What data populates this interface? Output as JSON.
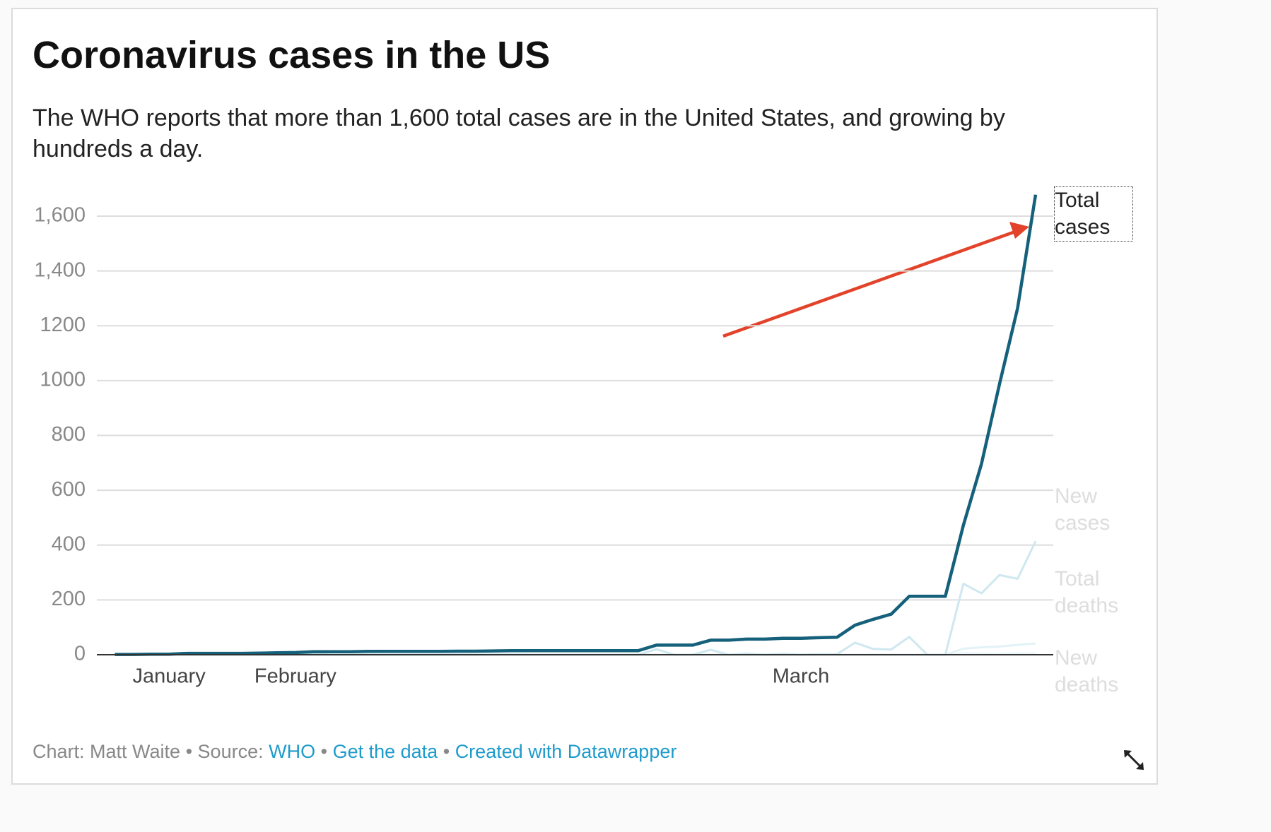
{
  "chart_data": {
    "type": "line",
    "title": "Coronavirus cases in the US",
    "subtitle": "The WHO reports that more than 1,600 total cases are in the United States, and growing by hundreds a day.",
    "categories": [
      null,
      null,
      null,
      "January",
      null,
      null,
      null,
      null,
      null,
      null,
      "February",
      null,
      null,
      null,
      null,
      null,
      null,
      null,
      null,
      null,
      null,
      null,
      null,
      null,
      null,
      null,
      null,
      null,
      null,
      null,
      null,
      null,
      null,
      null,
      null,
      null,
      null,
      null,
      "March",
      null,
      null,
      null,
      null,
      null,
      null,
      null,
      null,
      null,
      null,
      null,
      null,
      null
    ],
    "series": [
      {
        "name": "Total cases",
        "color": "#15607a",
        "values": [
          1,
          1,
          2,
          2,
          5,
          5,
          5,
          5,
          6,
          7,
          8,
          11,
          11,
          11,
          12,
          12,
          12,
          12,
          12,
          13,
          13,
          14,
          15,
          15,
          15,
          15,
          15,
          15,
          15,
          15,
          35,
          35,
          35,
          53,
          53,
          57,
          57,
          60,
          60,
          62,
          64,
          108,
          129,
          148,
          213,
          213,
          213,
          472,
          696,
          987,
          1264,
          1678
        ]
      },
      {
        "name": "New cases",
        "color": "#cfe8f0",
        "values": [
          0,
          0,
          1,
          0,
          3,
          0,
          0,
          0,
          1,
          1,
          1,
          3,
          0,
          0,
          1,
          0,
          0,
          0,
          0,
          1,
          0,
          1,
          1,
          0,
          0,
          0,
          0,
          0,
          0,
          0,
          20,
          0,
          0,
          18,
          0,
          4,
          0,
          3,
          0,
          2,
          2,
          44,
          21,
          19,
          65,
          0,
          0,
          259,
          224,
          291,
          277,
          414
        ]
      },
      {
        "name": "Total deaths",
        "color": "#e3f2f6",
        "values": [
          0,
          0,
          0,
          0,
          0,
          0,
          0,
          0,
          0,
          0,
          0,
          0,
          0,
          0,
          0,
          0,
          0,
          0,
          0,
          0,
          0,
          0,
          0,
          0,
          0,
          0,
          0,
          0,
          0,
          0,
          0,
          0,
          0,
          0,
          0,
          0,
          0,
          0,
          0,
          0,
          0,
          0,
          0,
          0,
          0,
          0,
          0,
          22,
          27,
          30,
          36,
          41
        ]
      },
      {
        "name": "New deaths",
        "color": "#eef7fa",
        "values": [
          0,
          0,
          0,
          0,
          0,
          0,
          0,
          0,
          0,
          0,
          0,
          0,
          0,
          0,
          0,
          0,
          0,
          0,
          0,
          0,
          0,
          0,
          0,
          0,
          0,
          0,
          0,
          0,
          0,
          0,
          0,
          0,
          0,
          0,
          0,
          0,
          0,
          0,
          0,
          0,
          0,
          0,
          0,
          0,
          0,
          0,
          0,
          7,
          5,
          3,
          6,
          5
        ]
      }
    ],
    "ylim": [
      0,
      1600
    ],
    "yticks": [
      0,
      200,
      400,
      600,
      800,
      1000,
      1200,
      {
        "value": 1400,
        "label": "1,400"
      },
      {
        "value": 1600,
        "label": "1,600"
      }
    ],
    "grid": true
  },
  "footer": {
    "credit": "Chart: Matt Waite",
    "separator": "•",
    "source_label": "Source:",
    "links": [
      "WHO",
      "Get the data",
      "Created with Datawrapper"
    ]
  }
}
